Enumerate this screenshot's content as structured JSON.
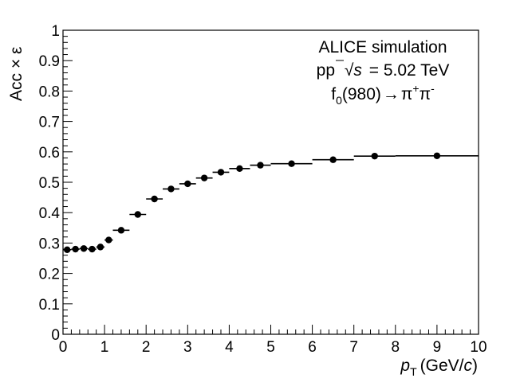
{
  "chart_data": {
    "type": "scatter",
    "xlabel": "p_T (GeV/c)",
    "ylabel": "Acc × ε",
    "xlim": [
      0,
      10
    ],
    "ylim": [
      0,
      1
    ],
    "x_ticks": [
      "0",
      "1",
      "2",
      "3",
      "4",
      "5",
      "6",
      "7",
      "8",
      "9",
      "10"
    ],
    "y_ticks": [
      "0",
      "0.1",
      "0.2",
      "0.3",
      "0.4",
      "0.5",
      "0.6",
      "0.7",
      "0.8",
      "0.9",
      "1"
    ],
    "grid": false,
    "annotations": {
      "line1": "ALICE simulation",
      "line2_prefix": "pp",
      "line2_sqrt": "√",
      "line2_s": "s",
      "line2_value": "= 5.02 TeV",
      "line3_f": "f",
      "line3_sub": "0",
      "line3_mass": "(980)",
      "line3_arrow": "→",
      "line3_pi1": "π",
      "line3_sup1": "+",
      "line3_pi2": "π",
      "line3_sup2": "-"
    },
    "series": [
      {
        "marker": "circle",
        "color": "#000000",
        "points": [
          {
            "x": 0.1,
            "xlow": 0.0,
            "xhigh": 0.2,
            "y": 0.278
          },
          {
            "x": 0.3,
            "xlow": 0.2,
            "xhigh": 0.4,
            "y": 0.28
          },
          {
            "x": 0.5,
            "xlow": 0.4,
            "xhigh": 0.6,
            "y": 0.282
          },
          {
            "x": 0.7,
            "xlow": 0.6,
            "xhigh": 0.8,
            "y": 0.28
          },
          {
            "x": 0.9,
            "xlow": 0.8,
            "xhigh": 1.0,
            "y": 0.287
          },
          {
            "x": 1.1,
            "xlow": 1.0,
            "xhigh": 1.2,
            "y": 0.31
          },
          {
            "x": 1.4,
            "xlow": 1.2,
            "xhigh": 1.6,
            "y": 0.342
          },
          {
            "x": 1.8,
            "xlow": 1.6,
            "xhigh": 2.0,
            "y": 0.394
          },
          {
            "x": 2.2,
            "xlow": 2.0,
            "xhigh": 2.4,
            "y": 0.445
          },
          {
            "x": 2.6,
            "xlow": 2.4,
            "xhigh": 2.8,
            "y": 0.478
          },
          {
            "x": 3.0,
            "xlow": 2.8,
            "xhigh": 3.2,
            "y": 0.495
          },
          {
            "x": 3.4,
            "xlow": 3.2,
            "xhigh": 3.6,
            "y": 0.514
          },
          {
            "x": 3.8,
            "xlow": 3.6,
            "xhigh": 4.0,
            "y": 0.533
          },
          {
            "x": 4.25,
            "xlow": 4.0,
            "xhigh": 4.5,
            "y": 0.545
          },
          {
            "x": 4.75,
            "xlow": 4.5,
            "xhigh": 5.0,
            "y": 0.556
          },
          {
            "x": 5.5,
            "xlow": 5.0,
            "xhigh": 6.0,
            "y": 0.561
          },
          {
            "x": 6.5,
            "xlow": 6.0,
            "xhigh": 7.0,
            "y": 0.574
          },
          {
            "x": 7.5,
            "xlow": 7.0,
            "xhigh": 8.0,
            "y": 0.586
          },
          {
            "x": 9.0,
            "xlow": 8.0,
            "xhigh": 10.0,
            "y": 0.587
          }
        ]
      }
    ]
  }
}
